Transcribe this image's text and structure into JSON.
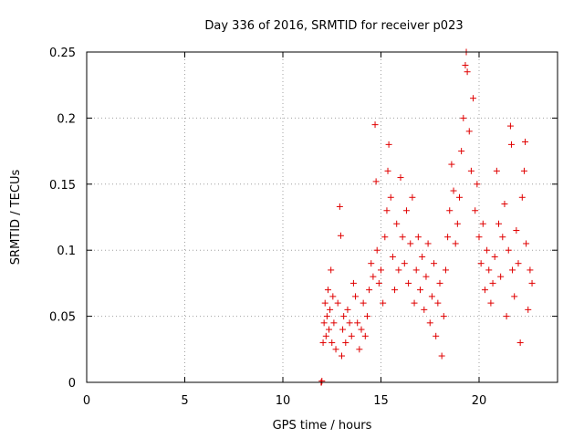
{
  "chart_data": {
    "type": "scatter",
    "title": "Day 336 of 2016, SRMTID for receiver p023",
    "xlabel": "GPS time / hours",
    "ylabel": "SRMTID / TECUs",
    "xlim": [
      0,
      24
    ],
    "ylim": [
      0,
      0.25
    ],
    "xticks": [
      0,
      5,
      10,
      15,
      20
    ],
    "yticks": [
      0,
      0.05,
      0.1,
      0.15,
      0.2,
      0.25
    ],
    "xtick_labels": [
      "0",
      "5",
      "10",
      "15",
      "20"
    ],
    "ytick_labels": [
      "0",
      "0.05",
      "0.1",
      "0.15",
      "0.2",
      "0.25"
    ],
    "grid": true,
    "marker": "+",
    "color": "#e00000",
    "series": [
      {
        "name": "p023",
        "data_range": {
          "x": [
            11.9,
            22.7
          ],
          "y": [
            0.0,
            0.25
          ]
        },
        "points": [
          [
            11.95,
            0.0
          ],
          [
            11.97,
            0.0
          ],
          [
            11.99,
            0.001
          ],
          [
            12.05,
            0.03
          ],
          [
            12.1,
            0.045
          ],
          [
            12.15,
            0.06
          ],
          [
            12.2,
            0.035
          ],
          [
            12.25,
            0.05
          ],
          [
            12.3,
            0.07
          ],
          [
            12.35,
            0.04
          ],
          [
            12.4,
            0.055
          ],
          [
            12.45,
            0.085
          ],
          [
            12.5,
            0.03
          ],
          [
            12.55,
            0.065
          ],
          [
            12.6,
            0.045
          ],
          [
            12.7,
            0.025
          ],
          [
            12.8,
            0.06
          ],
          [
            12.9,
            0.133
          ],
          [
            12.95,
            0.111
          ],
          [
            13.0,
            0.02
          ],
          [
            13.05,
            0.04
          ],
          [
            13.1,
            0.05
          ],
          [
            13.2,
            0.03
          ],
          [
            13.3,
            0.055
          ],
          [
            13.4,
            0.045
          ],
          [
            13.5,
            0.035
          ],
          [
            13.6,
            0.075
          ],
          [
            13.7,
            0.065
          ],
          [
            13.8,
            0.045
          ],
          [
            13.9,
            0.025
          ],
          [
            14.0,
            0.04
          ],
          [
            14.1,
            0.06
          ],
          [
            14.2,
            0.035
          ],
          [
            14.3,
            0.05
          ],
          [
            14.4,
            0.07
          ],
          [
            14.5,
            0.09
          ],
          [
            14.6,
            0.08
          ],
          [
            14.7,
            0.195
          ],
          [
            14.75,
            0.152
          ],
          [
            14.8,
            0.1
          ],
          [
            14.9,
            0.075
          ],
          [
            15.0,
            0.085
          ],
          [
            15.1,
            0.06
          ],
          [
            15.2,
            0.11
          ],
          [
            15.3,
            0.13
          ],
          [
            15.35,
            0.16
          ],
          [
            15.4,
            0.18
          ],
          [
            15.5,
            0.14
          ],
          [
            15.6,
            0.095
          ],
          [
            15.7,
            0.07
          ],
          [
            15.8,
            0.12
          ],
          [
            15.9,
            0.085
          ],
          [
            16.0,
            0.155
          ],
          [
            16.1,
            0.11
          ],
          [
            16.2,
            0.09
          ],
          [
            16.3,
            0.13
          ],
          [
            16.4,
            0.075
          ],
          [
            16.5,
            0.105
          ],
          [
            16.6,
            0.14
          ],
          [
            16.7,
            0.06
          ],
          [
            16.8,
            0.085
          ],
          [
            16.9,
            0.11
          ],
          [
            17.0,
            0.07
          ],
          [
            17.1,
            0.095
          ],
          [
            17.2,
            0.055
          ],
          [
            17.3,
            0.08
          ],
          [
            17.4,
            0.105
          ],
          [
            17.5,
            0.045
          ],
          [
            17.6,
            0.065
          ],
          [
            17.7,
            0.09
          ],
          [
            17.8,
            0.035
          ],
          [
            17.9,
            0.06
          ],
          [
            18.0,
            0.075
          ],
          [
            18.1,
            0.02
          ],
          [
            18.2,
            0.05
          ],
          [
            18.3,
            0.085
          ],
          [
            18.4,
            0.11
          ],
          [
            18.5,
            0.13
          ],
          [
            18.6,
            0.165
          ],
          [
            18.7,
            0.145
          ],
          [
            18.8,
            0.105
          ],
          [
            18.9,
            0.12
          ],
          [
            19.0,
            0.14
          ],
          [
            19.1,
            0.175
          ],
          [
            19.2,
            0.2
          ],
          [
            19.3,
            0.24
          ],
          [
            19.35,
            0.25
          ],
          [
            19.4,
            0.235
          ],
          [
            19.5,
            0.19
          ],
          [
            19.6,
            0.16
          ],
          [
            19.7,
            0.215
          ],
          [
            19.8,
            0.13
          ],
          [
            19.9,
            0.15
          ],
          [
            20.0,
            0.11
          ],
          [
            20.1,
            0.09
          ],
          [
            20.2,
            0.12
          ],
          [
            20.3,
            0.07
          ],
          [
            20.4,
            0.1
          ],
          [
            20.5,
            0.085
          ],
          [
            20.6,
            0.06
          ],
          [
            20.7,
            0.075
          ],
          [
            20.8,
            0.095
          ],
          [
            20.9,
            0.16
          ],
          [
            21.0,
            0.12
          ],
          [
            21.1,
            0.08
          ],
          [
            21.2,
            0.11
          ],
          [
            21.3,
            0.135
          ],
          [
            21.4,
            0.05
          ],
          [
            21.5,
            0.1
          ],
          [
            21.6,
            0.194
          ],
          [
            21.65,
            0.18
          ],
          [
            21.7,
            0.085
          ],
          [
            21.8,
            0.065
          ],
          [
            21.9,
            0.115
          ],
          [
            22.0,
            0.09
          ],
          [
            22.1,
            0.03
          ],
          [
            22.2,
            0.14
          ],
          [
            22.3,
            0.16
          ],
          [
            22.35,
            0.182
          ],
          [
            22.4,
            0.105
          ],
          [
            22.5,
            0.055
          ],
          [
            22.6,
            0.085
          ],
          [
            22.7,
            0.075
          ]
        ]
      }
    ]
  }
}
